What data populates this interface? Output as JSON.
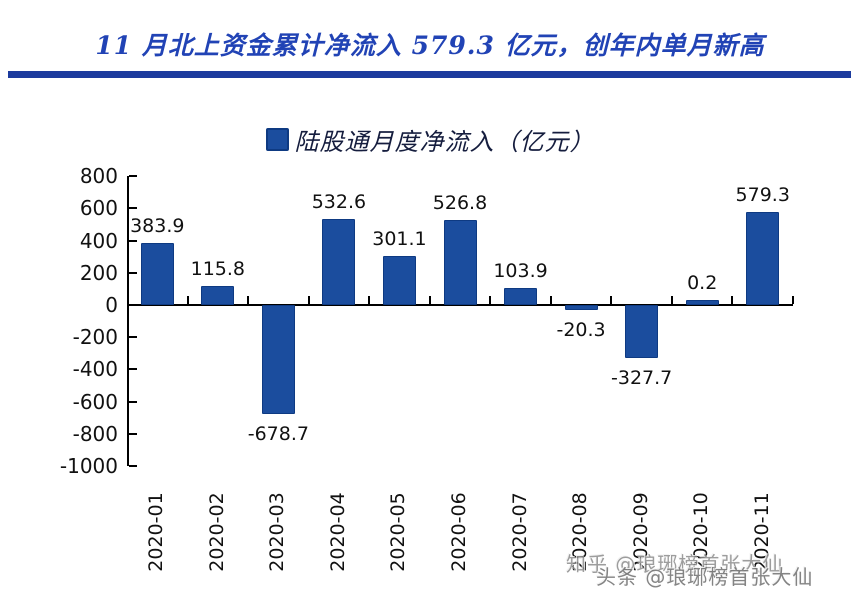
{
  "colors": {
    "bar": "#1b4d9e",
    "bar_border": "#0e3a82",
    "title": "#2143b5",
    "divider": "#1c3b9e",
    "legend_text": "#151d3e",
    "axis": "#000000",
    "label": "#111111",
    "watermark": "#8c8c8c"
  },
  "watermark": {
    "line1": "知乎 @琅琊榜首张大仙",
    "line2": "头条 @琅琊榜首张大仙"
  },
  "chart_data": {
    "type": "bar",
    "title": "11 月北上资金累计净流入 579.3 亿元，创年内单月新高",
    "unit": "亿元",
    "series": [
      {
        "name": "陆股通月度净流入（亿元）",
        "values": [
          383.9,
          115.8,
          -678.7,
          532.6,
          301.1,
          526.8,
          103.9,
          -20.3,
          -327.7,
          0.2,
          579.3
        ]
      }
    ],
    "categories": [
      "2020-01",
      "2020-02",
      "2020-03",
      "2020-04",
      "2020-05",
      "2020-06",
      "2020-07",
      "2020-08",
      "2020-09",
      "2020-10",
      "2020-11"
    ],
    "xlabel": "",
    "ylabel": "",
    "ylim": [
      -1000,
      800
    ],
    "yticks": [
      800,
      600,
      400,
      200,
      0,
      -200,
      -400,
      -600,
      -800,
      -1000
    ],
    "grid": false,
    "legend_position": "top-center",
    "value_labels": true
  }
}
